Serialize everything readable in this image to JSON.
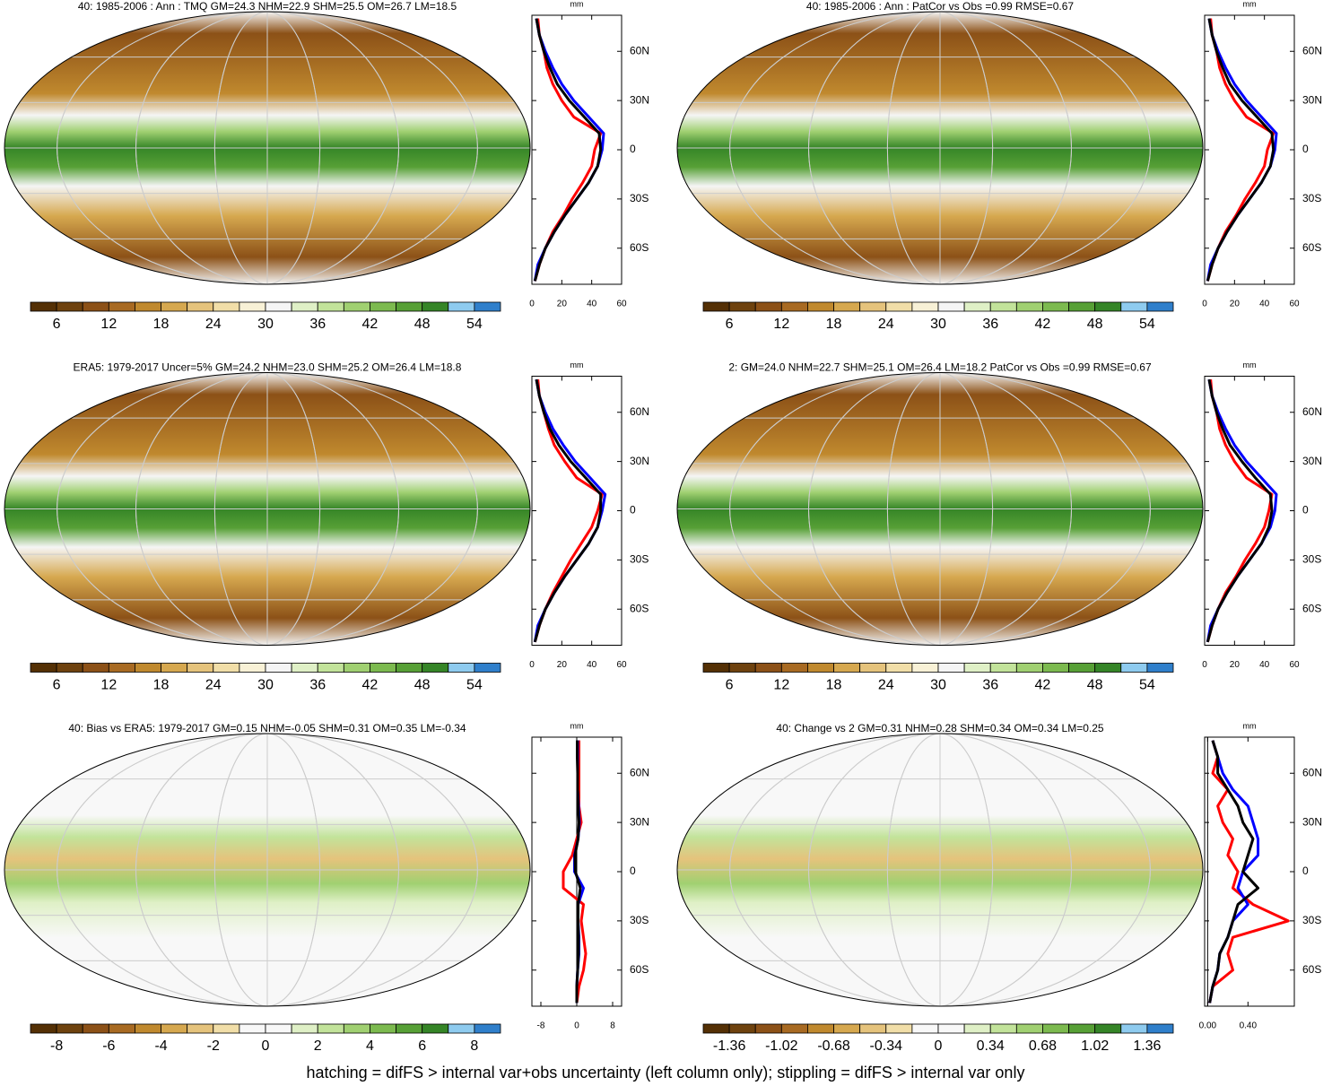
{
  "maps": [
    {
      "title": "40: 1985-2006 : Ann : TMQ GM=24.3 NHM=22.9 SHM=25.5 OM=26.7 LM=18.5",
      "colorbar": {
        "lim": [
          3,
          57
        ],
        "ticks": [
          6,
          12,
          18,
          24,
          30,
          36,
          42,
          48,
          54
        ],
        "colors": [
          "#543005",
          "#6e420e",
          "#8c5117",
          "#a86a22",
          "#c0892e",
          "#d6a84f",
          "#e5c37c",
          "#f1dea8",
          "#f8f1d6",
          "#f5f5f5",
          "#dff0c6",
          "#c2e39a",
          "#a0d071",
          "#7cba4f",
          "#57a036",
          "#358527",
          "#8ecbef",
          "#2f7fcb"
        ]
      }
    },
    {
      "title": "40: 1985-2006 : Ann : PatCor vs Obs =0.99 RMSE=0.67",
      "colorbar": {
        "lim": [
          3,
          57
        ],
        "ticks": [
          6,
          12,
          18,
          24,
          30,
          36,
          42,
          48,
          54
        ],
        "colors": [
          "#543005",
          "#6e420e",
          "#8c5117",
          "#a86a22",
          "#c0892e",
          "#d6a84f",
          "#e5c37c",
          "#f1dea8",
          "#f8f1d6",
          "#f5f5f5",
          "#dff0c6",
          "#c2e39a",
          "#a0d071",
          "#7cba4f",
          "#57a036",
          "#358527",
          "#8ecbef",
          "#2f7fcb"
        ]
      }
    },
    {
      "title": "ERA5: 1979-2017 Uncer=5% GM=24.2 NHM=23.0 SHM=25.2 OM=26.4 LM=18.8",
      "colorbar": {
        "lim": [
          3,
          57
        ],
        "ticks": [
          6,
          12,
          18,
          24,
          30,
          36,
          42,
          48,
          54
        ],
        "colors": [
          "#543005",
          "#6e420e",
          "#8c5117",
          "#a86a22",
          "#c0892e",
          "#d6a84f",
          "#e5c37c",
          "#f1dea8",
          "#f8f1d6",
          "#f5f5f5",
          "#dff0c6",
          "#c2e39a",
          "#a0d071",
          "#7cba4f",
          "#57a036",
          "#358527",
          "#8ecbef",
          "#2f7fcb"
        ]
      }
    },
    {
      "title": "2: GM=24.0 NHM=22.7 SHM=25.1 OM=26.4 LM=18.2 PatCor vs Obs =0.99 RMSE=0.67",
      "colorbar": {
        "lim": [
          3,
          57
        ],
        "ticks": [
          6,
          12,
          18,
          24,
          30,
          36,
          42,
          48,
          54
        ],
        "colors": [
          "#543005",
          "#6e420e",
          "#8c5117",
          "#a86a22",
          "#c0892e",
          "#d6a84f",
          "#e5c37c",
          "#f1dea8",
          "#f8f1d6",
          "#f5f5f5",
          "#dff0c6",
          "#c2e39a",
          "#a0d071",
          "#7cba4f",
          "#57a036",
          "#358527",
          "#8ecbef",
          "#2f7fcb"
        ]
      }
    },
    {
      "title": "40: Bias vs ERA5: 1979-2017 GM=0.15 NHM=-0.05 SHM=0.31 OM=0.35 LM=-0.34",
      "colorbar": {
        "lim": [
          -9,
          9
        ],
        "ticks": [
          -8,
          -6,
          -4,
          -2,
          0,
          2,
          4,
          6,
          8
        ],
        "colors": [
          "#543005",
          "#6e420e",
          "#8c5117",
          "#a86a22",
          "#c0892e",
          "#d6a84f",
          "#e5c37c",
          "#f1dea8",
          "#f8f8f8",
          "#f8f8f8",
          "#dff0c6",
          "#c2e39a",
          "#a0d071",
          "#7cba4f",
          "#57a036",
          "#358527",
          "#8ecbef",
          "#2f7fcb"
        ]
      }
    },
    {
      "title": "40: Change vs 2 GM=0.31 NHM=0.28 SHM=0.34 OM=0.34 LM=0.25",
      "colorbar": {
        "lim": [
          -1.53,
          1.53
        ],
        "ticks": [
          -1.36,
          -1.02,
          -0.68,
          -0.34,
          0,
          0.34,
          0.68,
          1.02,
          1.36
        ],
        "colors": [
          "#543005",
          "#6e420e",
          "#8c5117",
          "#a86a22",
          "#c0892e",
          "#d6a84f",
          "#e5c37c",
          "#f1dea8",
          "#f8f8f8",
          "#f8f8f8",
          "#dff0c6",
          "#c2e39a",
          "#a0d071",
          "#7cba4f",
          "#57a036",
          "#358527",
          "#8ecbef",
          "#2f7fcb"
        ]
      }
    }
  ],
  "chart_data": [
    {
      "type": "line",
      "xlabel": "mm",
      "xlim": [
        0,
        60
      ],
      "xticks": [
        0,
        20,
        40,
        60
      ],
      "ylim": [
        -82,
        82
      ],
      "yticks": [
        {
          "value": -60,
          "label": "60S"
        },
        {
          "value": -30,
          "label": "30S"
        },
        0,
        {
          "value": 30,
          "label": "30N"
        },
        {
          "value": 60,
          "label": "60N"
        }
      ],
      "lat": [
        -80,
        -70,
        -60,
        -50,
        -40,
        -30,
        -20,
        -10,
        0,
        10,
        20,
        30,
        40,
        50,
        60,
        70,
        80
      ],
      "series": [
        {
          "color": "#ff0000",
          "values": [
            2,
            5,
            9,
            14,
            21,
            27,
            34,
            40,
            42,
            46,
            28,
            20,
            14,
            10,
            8,
            5,
            4
          ]
        },
        {
          "color": "#0000ff",
          "values": [
            2,
            4,
            9,
            15,
            22,
            30,
            38,
            44,
            47,
            48,
            38,
            28,
            20,
            14,
            9,
            5,
            3
          ]
        },
        {
          "color": "#000000",
          "values": [
            2,
            5,
            9,
            15,
            22,
            30,
            38,
            44,
            46,
            45,
            35,
            25,
            17,
            12,
            8,
            5,
            3
          ]
        }
      ]
    },
    {
      "type": "line",
      "xlabel": "mm",
      "xlim": [
        0,
        60
      ],
      "xticks": [
        0,
        20,
        40,
        60
      ],
      "ylim": [
        -82,
        82
      ],
      "yticks": [
        {
          "value": -60,
          "label": "60S"
        },
        {
          "value": -30,
          "label": "30S"
        },
        0,
        {
          "value": 30,
          "label": "30N"
        },
        {
          "value": 60,
          "label": "60N"
        }
      ],
      "lat": [
        -80,
        -70,
        -60,
        -50,
        -40,
        -30,
        -20,
        -10,
        0,
        10,
        20,
        30,
        40,
        50,
        60,
        70,
        80
      ],
      "series": [
        {
          "color": "#ff0000",
          "values": [
            2,
            5,
            9,
            14,
            21,
            27,
            34,
            40,
            42,
            46,
            28,
            20,
            14,
            10,
            8,
            5,
            4
          ]
        },
        {
          "color": "#0000ff",
          "values": [
            2,
            4,
            9,
            15,
            22,
            30,
            38,
            44,
            47,
            48,
            38,
            28,
            20,
            14,
            9,
            5,
            3
          ]
        },
        {
          "color": "#000000",
          "values": [
            2,
            5,
            9,
            15,
            22,
            30,
            38,
            44,
            46,
            45,
            35,
            25,
            17,
            12,
            8,
            5,
            3
          ]
        }
      ]
    },
    {
      "type": "line",
      "xlabel": "mm",
      "xlim": [
        0,
        60
      ],
      "xticks": [
        0,
        20,
        40,
        60
      ],
      "ylim": [
        -82,
        82
      ],
      "yticks": [
        {
          "value": -60,
          "label": "60S"
        },
        {
          "value": -30,
          "label": "30S"
        },
        0,
        {
          "value": 30,
          "label": "30N"
        },
        {
          "value": 60,
          "label": "60N"
        }
      ],
      "lat": [
        -80,
        -70,
        -60,
        -50,
        -40,
        -30,
        -20,
        -10,
        0,
        10,
        20,
        30,
        40,
        50,
        60,
        70,
        80
      ],
      "series": [
        {
          "color": "#ff0000",
          "values": [
            2,
            5,
            9,
            14,
            20,
            26,
            33,
            40,
            44,
            47,
            30,
            22,
            15,
            11,
            8,
            5,
            4
          ]
        },
        {
          "color": "#0000ff",
          "values": [
            2,
            4,
            9,
            15,
            22,
            30,
            38,
            44,
            47,
            49,
            39,
            29,
            21,
            14,
            9,
            5,
            3
          ]
        },
        {
          "color": "#000000",
          "values": [
            2,
            5,
            9,
            15,
            22,
            30,
            38,
            44,
            46,
            46,
            36,
            26,
            18,
            12,
            8,
            5,
            3
          ]
        }
      ]
    },
    {
      "type": "line",
      "xlabel": "mm",
      "xlim": [
        0,
        60
      ],
      "xticks": [
        0,
        20,
        40,
        60
      ],
      "ylim": [
        -82,
        82
      ],
      "yticks": [
        {
          "value": -60,
          "label": "60S"
        },
        {
          "value": -30,
          "label": "30S"
        },
        0,
        {
          "value": 30,
          "label": "30N"
        },
        {
          "value": 60,
          "label": "60N"
        }
      ],
      "lat": [
        -80,
        -70,
        -60,
        -50,
        -40,
        -30,
        -20,
        -10,
        0,
        10,
        20,
        30,
        40,
        50,
        60,
        70,
        80
      ],
      "series": [
        {
          "color": "#ff0000",
          "values": [
            2,
            5,
            9,
            14,
            21,
            27,
            34,
            40,
            43,
            45,
            28,
            20,
            14,
            10,
            8,
            5,
            4
          ]
        },
        {
          "color": "#0000ff",
          "values": [
            2,
            4,
            9,
            15,
            22,
            30,
            38,
            44,
            47,
            48,
            38,
            28,
            20,
            14,
            9,
            5,
            3
          ]
        },
        {
          "color": "#000000",
          "values": [
            2,
            5,
            9,
            15,
            22,
            30,
            38,
            43,
            45,
            44,
            34,
            25,
            17,
            12,
            8,
            5,
            3
          ]
        }
      ]
    },
    {
      "type": "line",
      "xlabel": "mm",
      "xlim": [
        -10,
        10
      ],
      "xticks": [
        -8,
        0,
        8
      ],
      "ylim": [
        -82,
        82
      ],
      "yticks": [
        {
          "value": -60,
          "label": "60S"
        },
        {
          "value": -30,
          "label": "30S"
        },
        0,
        {
          "value": 30,
          "label": "30N"
        },
        {
          "value": 60,
          "label": "60N"
        }
      ],
      "lat": [
        -80,
        -70,
        -60,
        -50,
        -40,
        -30,
        -20,
        -10,
        0,
        10,
        20,
        30,
        40,
        50,
        60,
        70,
        80
      ],
      "series": [
        {
          "color": "#ff0000",
          "values": [
            0,
            0.5,
            1.5,
            2,
            1.5,
            1,
            1.5,
            -3,
            -3,
            -1,
            0,
            1,
            0.5,
            0.5,
            0.5,
            0.5,
            0.5
          ]
        },
        {
          "color": "#0000ff",
          "values": [
            0,
            0,
            0.2,
            0.5,
            0.5,
            0.3,
            0.3,
            1.5,
            -0.5,
            -0.5,
            0.3,
            0.6,
            0.4,
            0.2,
            0.2,
            0.2,
            0.2
          ]
        },
        {
          "color": "#000000",
          "values": [
            0,
            0,
            0.2,
            0.4,
            0.4,
            0.3,
            0.3,
            0.8,
            -0.3,
            -0.4,
            0.3,
            0.5,
            0.3,
            0.2,
            0.2,
            0.1,
            0.1
          ]
        }
      ]
    },
    {
      "type": "line",
      "xlabel": "mm",
      "xlim": [
        -0.03,
        0.86
      ],
      "xticks": [
        {
          "value": 0,
          "label": "0.00"
        },
        {
          "value": 0.4,
          "label": "0.40"
        }
      ],
      "ylim": [
        -82,
        82
      ],
      "yticks": [
        {
          "value": -60,
          "label": "60S"
        },
        {
          "value": -30,
          "label": "30S"
        },
        0,
        {
          "value": 30,
          "label": "30N"
        },
        {
          "value": 60,
          "label": "60N"
        }
      ],
      "lat": [
        -80,
        -70,
        -60,
        -50,
        -40,
        -30,
        -20,
        -10,
        0,
        10,
        20,
        30,
        40,
        50,
        60,
        70,
        80
      ],
      "series": [
        {
          "color": "#ff0000",
          "values": [
            0.02,
            0.05,
            0.25,
            0.2,
            0.25,
            0.8,
            0.45,
            0.25,
            0.3,
            0.2,
            0.25,
            0.15,
            0.1,
            0.2,
            0.05,
            0.1,
            0.05
          ]
        },
        {
          "color": "#0000ff",
          "values": [
            0.02,
            0.05,
            0.1,
            0.12,
            0.2,
            0.25,
            0.4,
            0.3,
            0.35,
            0.5,
            0.5,
            0.45,
            0.4,
            0.25,
            0.15,
            0.1,
            0.05
          ]
        },
        {
          "color": "#000000",
          "values": [
            0.02,
            0.05,
            0.1,
            0.12,
            0.2,
            0.25,
            0.3,
            0.5,
            0.35,
            0.4,
            0.45,
            0.35,
            0.3,
            0.2,
            0.1,
            0.1,
            0.05
          ]
        }
      ]
    }
  ],
  "footer": "hatching = difFS > internal var+obs uncertainty (left column only); stippling = difFS > internal var only"
}
